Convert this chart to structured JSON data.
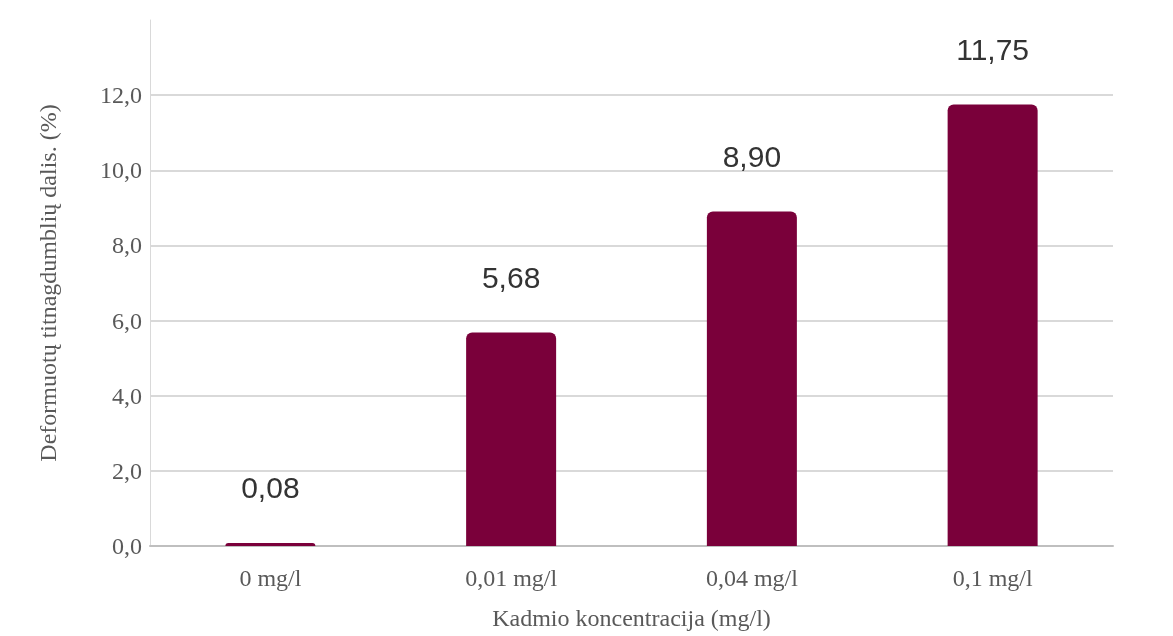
{
  "chart_data": {
    "type": "bar",
    "xlabel": "Kadmio koncentracija (mg/l)",
    "ylabel": "Deformuotų titnagdumblių dalis. (%)",
    "categories": [
      "0 mg/l",
      "0,01 mg/l",
      "0,04 mg/l",
      "0,1 mg/l"
    ],
    "values": [
      0.08,
      5.68,
      8.9,
      11.75
    ],
    "color": "#7a003a",
    "value_labels": [
      "0,08",
      "5,68",
      "8,90",
      "11,75"
    ],
    "ylim": [
      0,
      14
    ],
    "yticks": [
      {
        "value": 0,
        "label": "0,0"
      },
      {
        "value": 2,
        "label": "2,0"
      },
      {
        "value": 4,
        "label": "4,0"
      },
      {
        "value": 6,
        "label": "6,0"
      },
      {
        "value": 8,
        "label": "8,0"
      },
      {
        "value": 10,
        "label": "10,0"
      },
      {
        "value": 12,
        "label": "12,0"
      }
    ],
    "grid": "y"
  }
}
